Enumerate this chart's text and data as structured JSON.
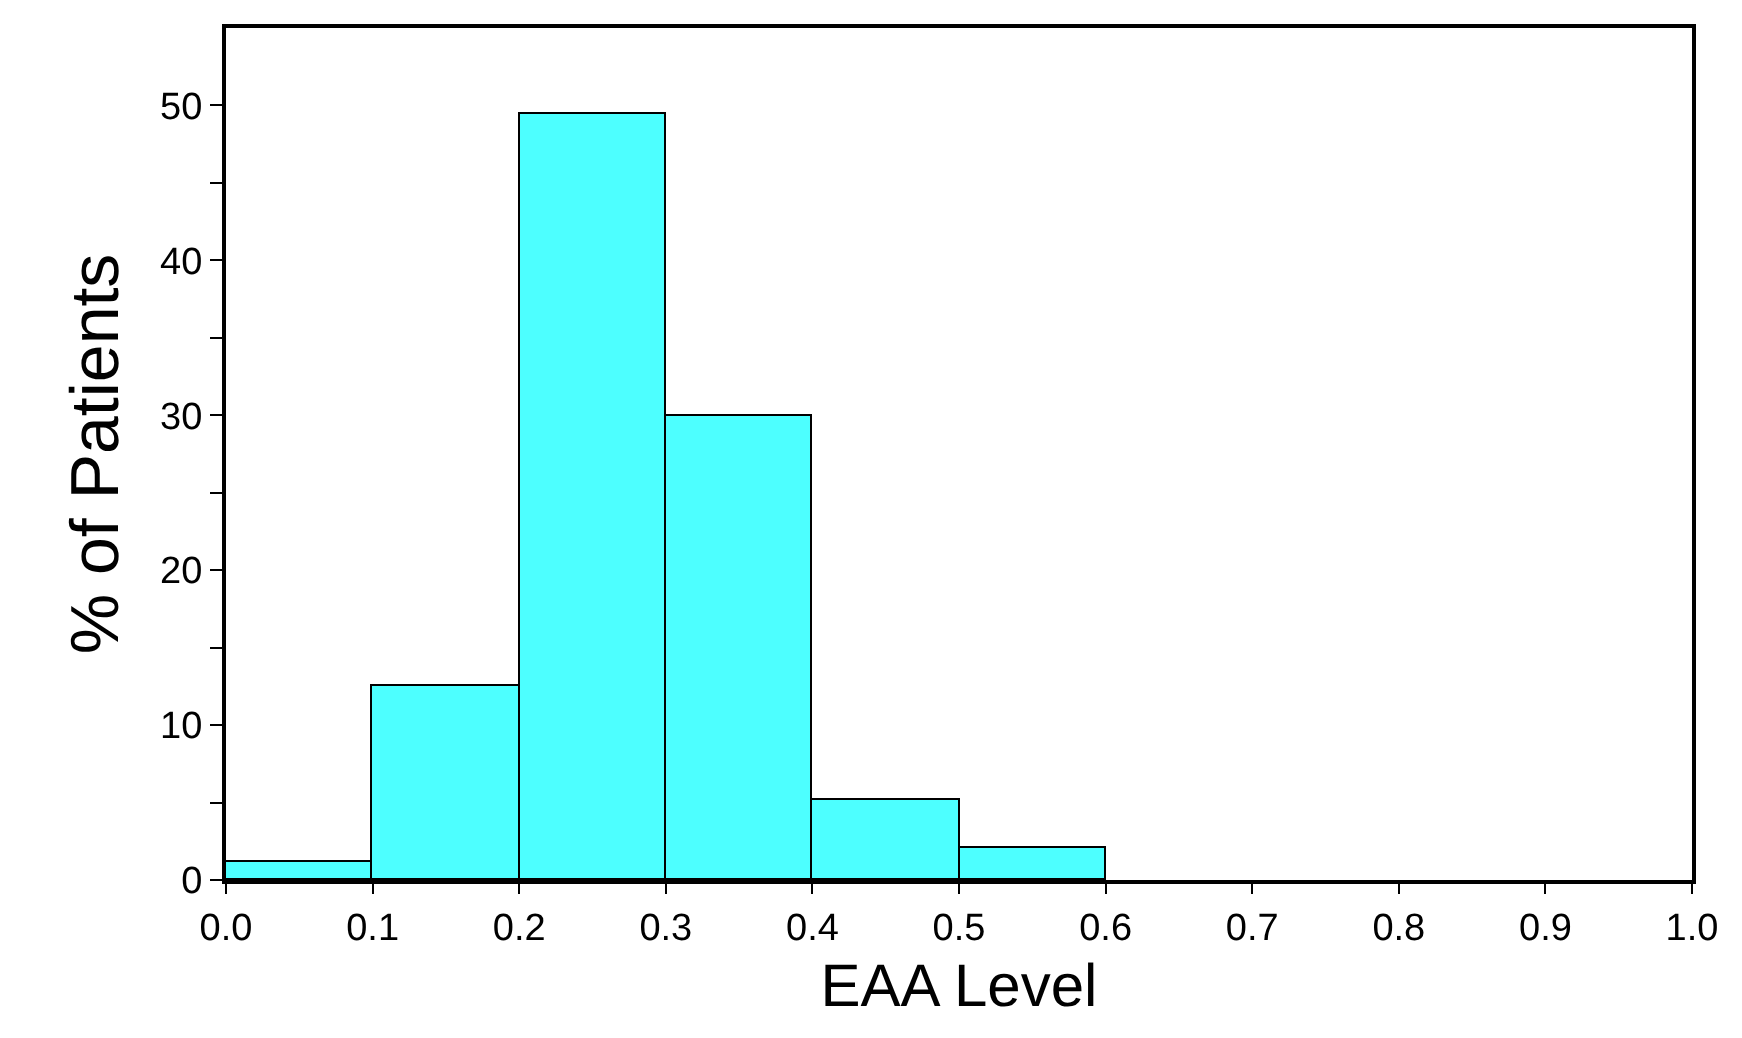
{
  "chart_data": {
    "type": "histogram",
    "xlabel": "EAA Level",
    "ylabel": "% of Patients",
    "bins": [
      0.0,
      0.1,
      0.2,
      0.3,
      0.4,
      0.5,
      0.6
    ],
    "values": [
      1.1,
      12.5,
      49.5,
      29.9,
      5.2,
      2.1
    ],
    "color": "#4dffff",
    "xlim": [
      0,
      1
    ],
    "xticks": [
      {
        "value": 0,
        "label": "0.0"
      },
      0.1,
      0.2,
      0.3,
      0.4,
      0.5,
      0.6,
      0.7,
      0.8,
      0.9,
      {
        "value": 1,
        "label": "1.0"
      }
    ],
    "ylim": [
      0,
      55
    ],
    "yticks": [
      0,
      {
        "value": 5,
        "label": null
      },
      10,
      {
        "value": 15,
        "label": null
      },
      20,
      {
        "value": 25,
        "label": null
      },
      30,
      {
        "value": 35,
        "label": null
      },
      40,
      {
        "value": 45,
        "label": null
      },
      50
    ],
    "legend": false
  }
}
